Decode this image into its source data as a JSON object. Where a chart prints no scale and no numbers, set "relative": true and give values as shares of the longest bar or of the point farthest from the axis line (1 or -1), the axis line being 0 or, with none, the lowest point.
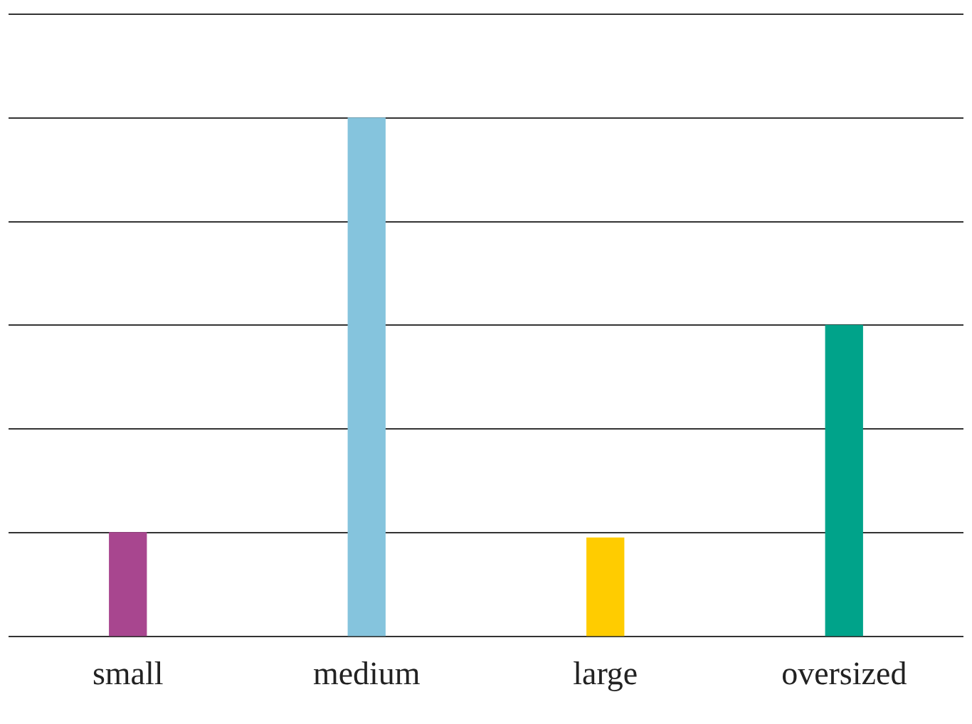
{
  "chart_data": {
    "type": "bar",
    "relative": true,
    "grid": "y",
    "categories": [
      "small",
      "medium",
      "large",
      "oversized"
    ],
    "values": [
      0.2,
      1,
      0.19,
      0.6
    ],
    "colors": [
      "#a8468f",
      "#85c4dd",
      "#ffcc00",
      "#00a38a"
    ]
  }
}
